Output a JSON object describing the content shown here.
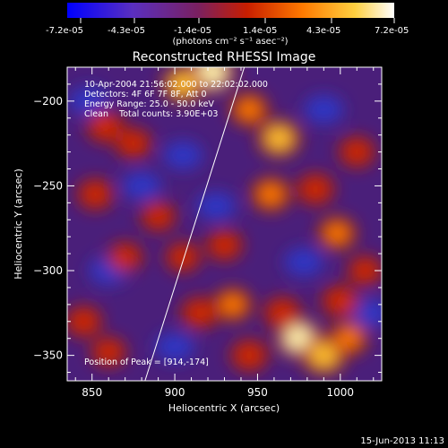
{
  "chart_data": {
    "type": "heatmap",
    "title": "Reconstructed RHESSI Image",
    "xlabel": "Heliocentric X (arcsec)",
    "ylabel": "Heliocentric Y (arcsec)",
    "xlim": [
      835,
      1025
    ],
    "ylim": [
      -365,
      -180
    ],
    "x_ticks": [
      850,
      900,
      950,
      1000
    ],
    "y_ticks": [
      -200,
      -250,
      -300,
      -350
    ],
    "colorbar": {
      "range": [
        -7.2e-05,
        7.2e-05
      ],
      "tick_labels": [
        "-7.2e-05",
        "-4.3e-05",
        "-1.4e-05",
        "1.4e-05",
        "4.3e-05",
        "7.2e-05"
      ],
      "unit_label": "(photons cm⁻² s⁻¹ asec⁻²)",
      "colors": [
        "#0000ff",
        "#6a2fb0",
        "#8a2060",
        "#c81e00",
        "#ff7a00",
        "#ffd040",
        "#ffffff"
      ]
    },
    "annotations": [
      "10-Apr-2004 21:56:02.000 to 22:02:02.000",
      "Detectors: 4F 6F 7F 8F, Att 0",
      "Energy Range: 25.0 - 50.0 keV",
      "Clean    Total counts: 3.90E+03"
    ],
    "peak_label": "Position of Peak = [914,-174]",
    "limb_line": [
      [
        882,
        -365
      ],
      [
        942,
        -180
      ]
    ],
    "hotspots": [
      {
        "x": 922,
        "y": -183,
        "v": 1.0
      },
      {
        "x": 905,
        "y": -190,
        "v": 0.75
      },
      {
        "x": 945,
        "y": -205,
        "v": 0.6
      },
      {
        "x": 963,
        "y": -222,
        "v": 0.8
      },
      {
        "x": 958,
        "y": -255,
        "v": 0.65
      },
      {
        "x": 985,
        "y": -252,
        "v": 0.55
      },
      {
        "x": 998,
        "y": -278,
        "v": 0.6
      },
      {
        "x": 1010,
        "y": -230,
        "v": 0.5
      },
      {
        "x": 858,
        "y": -215,
        "v": 0.55
      },
      {
        "x": 875,
        "y": -225,
        "v": 0.5
      },
      {
        "x": 852,
        "y": -255,
        "v": 0.5
      },
      {
        "x": 870,
        "y": -292,
        "v": 0.45
      },
      {
        "x": 890,
        "y": -268,
        "v": 0.45
      },
      {
        "x": 905,
        "y": -292,
        "v": 0.45
      },
      {
        "x": 930,
        "y": -285,
        "v": 0.5
      },
      {
        "x": 935,
        "y": -320,
        "v": 0.6
      },
      {
        "x": 915,
        "y": -325,
        "v": 0.55
      },
      {
        "x": 965,
        "y": -325,
        "v": 0.55
      },
      {
        "x": 975,
        "y": -340,
        "v": 0.9
      },
      {
        "x": 990,
        "y": -350,
        "v": 0.85
      },
      {
        "x": 1005,
        "y": -340,
        "v": 0.6
      },
      {
        "x": 1000,
        "y": -318,
        "v": 0.55
      },
      {
        "x": 945,
        "y": -350,
        "v": 0.55
      },
      {
        "x": 845,
        "y": -330,
        "v": 0.5
      },
      {
        "x": 860,
        "y": -348,
        "v": 0.45
      },
      {
        "x": 1015,
        "y": -300,
        "v": 0.45
      }
    ],
    "coldspots": [
      {
        "x": 880,
        "y": -250,
        "v": -0.4
      },
      {
        "x": 860,
        "y": -300,
        "v": -0.5
      },
      {
        "x": 925,
        "y": -262,
        "v": -0.45
      },
      {
        "x": 978,
        "y": -295,
        "v": -0.4
      },
      {
        "x": 900,
        "y": -345,
        "v": -0.35
      },
      {
        "x": 848,
        "y": -200,
        "v": -0.4
      },
      {
        "x": 990,
        "y": -205,
        "v": -0.35
      },
      {
        "x": 1018,
        "y": -325,
        "v": -0.3
      },
      {
        "x": 905,
        "y": -232,
        "v": -0.3
      }
    ]
  },
  "footer": {
    "date": "15-Jun-2013 11:13"
  }
}
